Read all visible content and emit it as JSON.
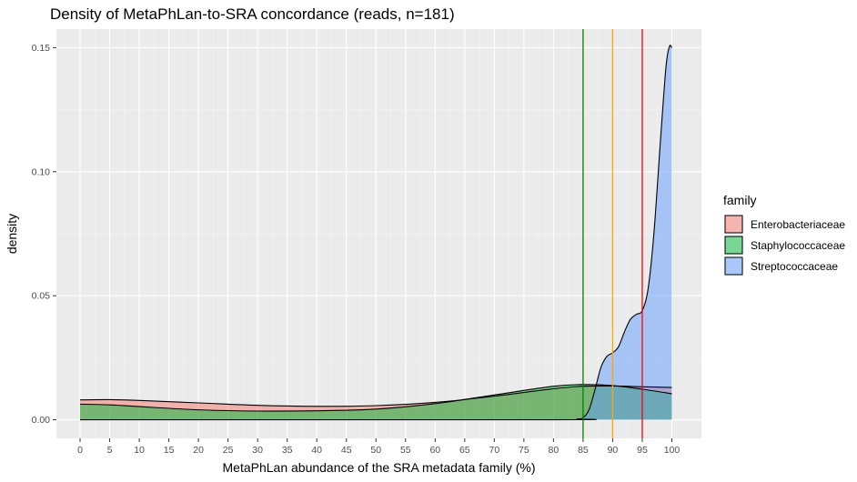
{
  "chart_data": {
    "type": "area",
    "title": "Density of MetaPhLan-to-SRA concordance (reads, n=181)",
    "xlabel": "MetaPhLan abundance of the SRA metadata family (%)",
    "ylabel": "density",
    "xlim": [
      -4,
      105
    ],
    "ylim": [
      -0.0075,
      0.1575
    ],
    "x_ticks": [
      0,
      5,
      10,
      15,
      20,
      25,
      30,
      35,
      40,
      45,
      50,
      55,
      60,
      65,
      70,
      75,
      80,
      85,
      90,
      95,
      100
    ],
    "y_ticks": [
      0.0,
      0.05,
      0.1,
      0.15
    ],
    "y_tick_labels": [
      "0.00",
      "0.05",
      "0.10",
      "0.15"
    ],
    "grid": true,
    "legend": {
      "title": "family",
      "position": "right"
    },
    "series": [
      {
        "name": "Enterobacteriaceae",
        "color": "#F8766D",
        "x": [
          0,
          5,
          10,
          20,
          30,
          40,
          50,
          60,
          70,
          80,
          85,
          90,
          95,
          100
        ],
        "y": [
          0.008,
          0.0081,
          0.0078,
          0.0068,
          0.0058,
          0.0054,
          0.0057,
          0.007,
          0.0095,
          0.0125,
          0.0135,
          0.0136,
          0.0133,
          0.013
        ]
      },
      {
        "name": "Staphylococcaceae",
        "color": "#00BA38",
        "x": [
          0,
          5,
          10,
          20,
          30,
          40,
          50,
          60,
          70,
          80,
          85,
          90,
          95,
          100
        ],
        "y": [
          0.0063,
          0.006,
          0.0053,
          0.004,
          0.0035,
          0.0036,
          0.0043,
          0.0065,
          0.01,
          0.0135,
          0.0142,
          0.0138,
          0.0123,
          0.0105
        ]
      },
      {
        "name": "Streptococcaceae",
        "color": "#619CFF",
        "x": [
          0,
          80,
          84,
          85,
          86,
          87,
          88,
          89,
          90,
          91,
          92,
          93,
          94,
          95,
          96,
          97,
          98,
          99,
          99.6,
          100
        ],
        "y": [
          0,
          0,
          0.0003,
          0.0008,
          0.004,
          0.012,
          0.021,
          0.0255,
          0.027,
          0.0295,
          0.0355,
          0.0405,
          0.0425,
          0.044,
          0.053,
          0.076,
          0.11,
          0.142,
          0.1505,
          0.15
        ]
      }
    ],
    "vlines": [
      {
        "x": 85,
        "color": "#008000"
      },
      {
        "x": 90,
        "color": "#FFA500"
      },
      {
        "x": 95,
        "color": "#FF0000"
      }
    ]
  }
}
